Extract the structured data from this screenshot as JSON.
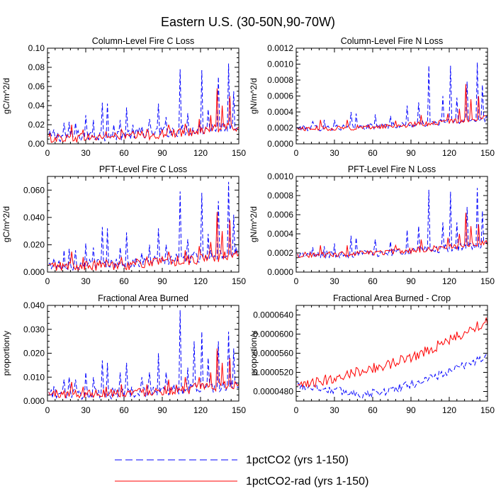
{
  "page": {
    "title": "Eastern U.S. (30-50N,90-70W)"
  },
  "legend": {
    "items": [
      {
        "label": "1pctCO2 (yrs 1-150)",
        "color": "#0000ff",
        "dash": "dashed"
      },
      {
        "label": "1pctCO2-rad (yrs 1-150)",
        "color": "#ff0000",
        "dash": "solid"
      }
    ]
  },
  "chart_data": [
    {
      "type": "line",
      "title": "Column-Level Fire C Loss",
      "ylabel": "gC/m^2/d",
      "xlim": [
        0,
        150
      ],
      "ylim": [
        0,
        0.1
      ],
      "xticks": [
        0,
        30,
        60,
        90,
        120,
        150
      ],
      "xtick_labels": [
        "0",
        "30",
        "60",
        "90",
        "120",
        "150"
      ],
      "yticks": [
        0,
        0.02,
        0.04,
        0.06,
        0.08,
        0.1
      ],
      "ytick_labels": [
        "0.00",
        "0.02",
        "0.04",
        "0.06",
        "0.08",
        "0.10"
      ],
      "series": [
        {
          "name": "1pctCO2 (yrs 1-150)",
          "color": "#0000ff",
          "dash": "dashed",
          "base": 0.008,
          "trend": 0.012,
          "noise": 0.006,
          "peaks": [
            [
              5,
              0.015
            ],
            [
              13,
              0.022
            ],
            [
              17,
              0.023
            ],
            [
              22,
              0.022
            ],
            [
              30,
              0.03
            ],
            [
              36,
              0.025
            ],
            [
              43,
              0.043
            ],
            [
              47,
              0.042
            ],
            [
              52,
              0.02
            ],
            [
              57,
              0.025
            ],
            [
              62,
              0.038
            ],
            [
              67,
              0.02
            ],
            [
              74,
              0.018
            ],
            [
              80,
              0.026
            ],
            [
              87,
              0.042
            ],
            [
              93,
              0.028
            ],
            [
              104,
              0.078
            ],
            [
              110,
              0.032
            ],
            [
              121,
              0.077
            ],
            [
              126,
              0.036
            ],
            [
              134,
              0.07
            ],
            [
              142,
              0.084
            ],
            [
              146,
              0.055
            ]
          ]
        },
        {
          "name": "1pctCO2-rad (yrs 1-150)",
          "color": "#ff0000",
          "dash": "solid",
          "base": 0.006,
          "trend": 0.012,
          "noise": 0.005,
          "peaks": [
            [
              19,
              0.02
            ],
            [
              28,
              0.015
            ],
            [
              46,
              0.013
            ],
            [
              58,
              0.015
            ],
            [
              78,
              0.015
            ],
            [
              95,
              0.02
            ],
            [
              108,
              0.021
            ],
            [
              119,
              0.026
            ],
            [
              128,
              0.03
            ],
            [
              133,
              0.058
            ],
            [
              137,
              0.04
            ],
            [
              143,
              0.05
            ]
          ]
        }
      ]
    },
    {
      "type": "line",
      "title": "Column-Level Fire N Loss",
      "ylabel": "gN/m^2/d",
      "xlim": [
        0,
        150
      ],
      "ylim": [
        0,
        0.0012
      ],
      "xticks": [
        0,
        30,
        60,
        90,
        120,
        150
      ],
      "xtick_labels": [
        "0",
        "30",
        "60",
        "90",
        "120",
        "150"
      ],
      "yticks": [
        0,
        0.0002,
        0.0004,
        0.0006,
        0.0008,
        0.001,
        0.0012
      ],
      "ytick_labels": [
        "0.0000",
        "0.0002",
        "0.0004",
        "0.0006",
        "0.0008",
        "0.0010",
        "0.0012"
      ],
      "series": [
        {
          "name": "1pctCO2 (yrs 1-150)",
          "color": "#0000ff",
          "dash": "dashed",
          "base": 0.0002,
          "trend": 0.00012,
          "noise": 4e-05,
          "peaks": [
            [
              13,
              0.00028
            ],
            [
              22,
              0.0003
            ],
            [
              30,
              0.0003
            ],
            [
              43,
              0.0004
            ],
            [
              47,
              0.00038
            ],
            [
              62,
              0.00037
            ],
            [
              74,
              0.00035
            ],
            [
              87,
              0.00048
            ],
            [
              96,
              0.00052
            ],
            [
              104,
              0.00098
            ],
            [
              115,
              0.0006
            ],
            [
              121,
              0.00098
            ],
            [
              126,
              0.00058
            ],
            [
              134,
              0.00078
            ],
            [
              142,
              0.00102
            ],
            [
              146,
              0.00074
            ]
          ]
        },
        {
          "name": "1pctCO2-rad (yrs 1-150)",
          "color": "#ff0000",
          "dash": "solid",
          "base": 0.00019,
          "trend": 0.00014,
          "noise": 3e-05,
          "peaks": [
            [
              19,
              0.0003
            ],
            [
              40,
              0.0003
            ],
            [
              78,
              0.00029
            ],
            [
              98,
              0.00036
            ],
            [
              119,
              0.00038
            ],
            [
              128,
              0.00044
            ],
            [
              133,
              0.00075
            ],
            [
              137,
              0.00056
            ],
            [
              143,
              0.0006
            ]
          ]
        }
      ]
    },
    {
      "type": "line",
      "title": "PFT-Level Fire C Loss",
      "ylabel": "gC/m^2/d",
      "xlim": [
        0,
        150
      ],
      "ylim": [
        0,
        0.07
      ],
      "xticks": [
        0,
        30,
        60,
        90,
        120,
        150
      ],
      "xtick_labels": [
        "0",
        "30",
        "60",
        "90",
        "120",
        "150"
      ],
      "yticks": [
        0,
        0.02,
        0.04,
        0.06
      ],
      "ytick_labels": [
        "0.000",
        "0.020",
        "0.040",
        "0.060"
      ],
      "series": [
        {
          "name": "1pctCO2 (yrs 1-150)",
          "color": "#0000ff",
          "dash": "dashed",
          "base": 0.005,
          "trend": 0.01,
          "noise": 0.004,
          "peaks": [
            [
              5,
              0.01
            ],
            [
              13,
              0.016
            ],
            [
              17,
              0.017
            ],
            [
              22,
              0.016
            ],
            [
              30,
              0.021
            ],
            [
              36,
              0.018
            ],
            [
              43,
              0.033
            ],
            [
              47,
              0.032
            ],
            [
              57,
              0.018
            ],
            [
              62,
              0.029
            ],
            [
              74,
              0.014
            ],
            [
              80,
              0.02
            ],
            [
              87,
              0.032
            ],
            [
              93,
              0.02
            ],
            [
              104,
              0.059
            ],
            [
              110,
              0.024
            ],
            [
              121,
              0.058
            ],
            [
              126,
              0.028
            ],
            [
              134,
              0.052
            ],
            [
              142,
              0.066
            ],
            [
              146,
              0.042
            ]
          ]
        },
        {
          "name": "1pctCO2-rad (yrs 1-150)",
          "color": "#ff0000",
          "dash": "solid",
          "base": 0.004,
          "trend": 0.009,
          "noise": 0.004,
          "peaks": [
            [
              19,
              0.015
            ],
            [
              28,
              0.011
            ],
            [
              46,
              0.009
            ],
            [
              58,
              0.011
            ],
            [
              78,
              0.011
            ],
            [
              95,
              0.015
            ],
            [
              108,
              0.016
            ],
            [
              119,
              0.019
            ],
            [
              128,
              0.022
            ],
            [
              133,
              0.044
            ],
            [
              137,
              0.03
            ],
            [
              143,
              0.038
            ]
          ]
        }
      ]
    },
    {
      "type": "line",
      "title": "PFT-Level Fire N Loss",
      "ylabel": "gN/m^2/d",
      "xlim": [
        0,
        150
      ],
      "ylim": [
        0,
        0.001
      ],
      "xticks": [
        0,
        30,
        60,
        90,
        120,
        150
      ],
      "xtick_labels": [
        "0",
        "30",
        "60",
        "90",
        "120",
        "150"
      ],
      "yticks": [
        0,
        0.0002,
        0.0004,
        0.0006,
        0.0008,
        0.001
      ],
      "ytick_labels": [
        "0.0000",
        "0.0002",
        "0.0004",
        "0.0006",
        "0.0008",
        "0.0010"
      ],
      "series": [
        {
          "name": "1pctCO2 (yrs 1-150)",
          "color": "#0000ff",
          "dash": "dashed",
          "base": 0.00018,
          "trend": 0.00011,
          "noise": 4e-05,
          "peaks": [
            [
              13,
              0.00026
            ],
            [
              22,
              0.00027
            ],
            [
              30,
              0.0003
            ],
            [
              43,
              0.00038
            ],
            [
              47,
              0.00036
            ],
            [
              62,
              0.00034
            ],
            [
              74,
              0.00032
            ],
            [
              87,
              0.00044
            ],
            [
              96,
              0.00048
            ],
            [
              104,
              0.00086
            ],
            [
              115,
              0.00052
            ],
            [
              121,
              0.00084
            ],
            [
              126,
              0.00052
            ],
            [
              134,
              0.00068
            ],
            [
              142,
              0.00088
            ],
            [
              146,
              0.00064
            ]
          ]
        },
        {
          "name": "1pctCO2-rad (yrs 1-150)",
          "color": "#ff0000",
          "dash": "solid",
          "base": 0.00018,
          "trend": 0.00013,
          "noise": 3e-05,
          "peaks": [
            [
              19,
              0.00028
            ],
            [
              40,
              0.00028
            ],
            [
              78,
              0.00028
            ],
            [
              98,
              0.00034
            ],
            [
              119,
              0.00036
            ],
            [
              128,
              0.0004
            ],
            [
              133,
              0.00062
            ],
            [
              137,
              0.00048
            ],
            [
              143,
              0.0005
            ]
          ]
        }
      ]
    },
    {
      "type": "line",
      "title": "Fractional Area Burned",
      "ylabel": "proportion/y",
      "xlim": [
        0,
        150
      ],
      "ylim": [
        0,
        0.04
      ],
      "xticks": [
        0,
        30,
        60,
        90,
        120,
        150
      ],
      "xtick_labels": [
        "0",
        "30",
        "60",
        "90",
        "120",
        "150"
      ],
      "yticks": [
        0,
        0.01,
        0.02,
        0.03,
        0.04
      ],
      "ytick_labels": [
        "0.000",
        "0.010",
        "0.020",
        "0.030",
        "0.040"
      ],
      "series": [
        {
          "name": "1pctCO2 (yrs 1-150)",
          "color": "#0000ff",
          "dash": "dashed",
          "base": 0.003,
          "trend": 0.004,
          "noise": 0.0025,
          "peaks": [
            [
              5,
              0.006
            ],
            [
              13,
              0.009
            ],
            [
              17,
              0.01
            ],
            [
              22,
              0.009
            ],
            [
              30,
              0.012
            ],
            [
              36,
              0.01
            ],
            [
              43,
              0.017
            ],
            [
              47,
              0.016
            ],
            [
              57,
              0.012
            ],
            [
              62,
              0.016
            ],
            [
              74,
              0.01
            ],
            [
              80,
              0.012
            ],
            [
              87,
              0.02
            ],
            [
              93,
              0.012
            ],
            [
              104,
              0.038
            ],
            [
              110,
              0.014
            ],
            [
              115,
              0.025
            ],
            [
              121,
              0.029
            ],
            [
              126,
              0.018
            ],
            [
              134,
              0.025
            ],
            [
              142,
              0.029
            ],
            [
              146,
              0.022
            ]
          ]
        },
        {
          "name": "1pctCO2-rad (yrs 1-150)",
          "color": "#ff0000",
          "dash": "solid",
          "base": 0.003,
          "trend": 0.004,
          "noise": 0.002,
          "peaks": [
            [
              19,
              0.008
            ],
            [
              28,
              0.006
            ],
            [
              46,
              0.006
            ],
            [
              58,
              0.007
            ],
            [
              78,
              0.007
            ],
            [
              95,
              0.009
            ],
            [
              108,
              0.01
            ],
            [
              119,
              0.01
            ],
            [
              128,
              0.012
            ],
            [
              133,
              0.022
            ],
            [
              137,
              0.016
            ],
            [
              143,
              0.018
            ]
          ]
        }
      ]
    },
    {
      "type": "line",
      "title": "Fractional Area Burned - Crop",
      "ylabel": "proportion/y",
      "xlim": [
        0,
        150
      ],
      "ylim": [
        4.6e-05,
        6.6e-05
      ],
      "xticks": [
        0,
        30,
        60,
        90,
        120,
        150
      ],
      "xtick_labels": [
        "0",
        "30",
        "60",
        "90",
        "120",
        "150"
      ],
      "yticks": [
        4.8e-05,
        5.2e-05,
        5.6e-05,
        6e-05,
        6.4e-05
      ],
      "ytick_labels": [
        "0.0000480",
        "0.0000520",
        "0.0000560",
        "0.0000600",
        "0.0000640"
      ],
      "series": [
        {
          "name": "1pctCO2 (yrs 1-150)",
          "color": "#0000ff",
          "dash": "dashed",
          "start": 4.93e-05,
          "mid": 4.74e-05,
          "end": 5.55e-05,
          "noise": 9e-07
        },
        {
          "name": "1pctCO2-rad (yrs 1-150)",
          "color": "#ff0000",
          "dash": "solid",
          "start": 4.88e-05,
          "mid": 5.26e-05,
          "end": 6.28e-05,
          "noise": 1.1e-06
        }
      ]
    }
  ]
}
